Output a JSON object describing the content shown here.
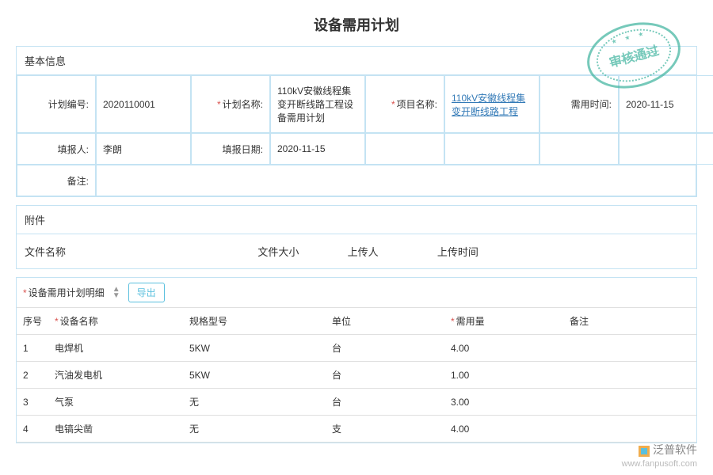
{
  "page_title": "设备需用计划",
  "stamp_text": "审核通过",
  "basic": {
    "section_title": "基本信息",
    "labels": {
      "plan_no": "计划编号:",
      "plan_name": "计划名称:",
      "project_name": "项目名称:",
      "need_time": "需用时间:",
      "reporter": "填报人:",
      "report_date": "填报日期:",
      "remark": "备注:"
    },
    "values": {
      "plan_no": "2020110001",
      "plan_name": "110kV安徽线程集变开断线路工程设备需用计划",
      "project_name": "110kV安徽线程集变开断线路工程",
      "need_time": "2020-11-15",
      "reporter": "李朗",
      "report_date": "2020-11-15",
      "remark": ""
    }
  },
  "attachment": {
    "section_title": "附件",
    "cols": {
      "filename": "文件名称",
      "filesize": "文件大小",
      "uploader": "上传人",
      "uploadtime": "上传时间"
    }
  },
  "detail": {
    "title": "设备需用计划明细",
    "export_label": "导出",
    "columns": {
      "seq": "序号",
      "name": "设备名称",
      "spec": "规格型号",
      "unit": "单位",
      "qty": "需用量",
      "remark": "备注"
    },
    "rows": [
      {
        "seq": "1",
        "name": "电焊机",
        "spec": "5KW",
        "unit": "台",
        "qty": "4.00",
        "remark": ""
      },
      {
        "seq": "2",
        "name": "汽油发电机",
        "spec": "5KW",
        "unit": "台",
        "qty": "1.00",
        "remark": ""
      },
      {
        "seq": "3",
        "name": "气泵",
        "spec": "无",
        "unit": "台",
        "qty": "3.00",
        "remark": ""
      },
      {
        "seq": "4",
        "name": "电镐尖凿",
        "spec": "无",
        "unit": "支",
        "qty": "4.00",
        "remark": ""
      }
    ]
  },
  "watermark": {
    "brand": "泛普软件",
    "url": "www.fanpusoft.com"
  }
}
